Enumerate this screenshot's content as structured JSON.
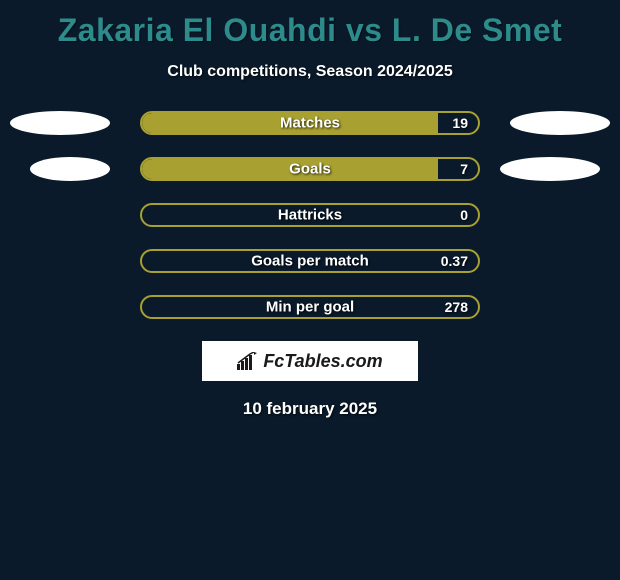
{
  "title": "Zakaria El Ouahdi vs L. De Smet",
  "subtitle": "Club competitions, Season 2024/2025",
  "date": "10 february 2025",
  "logo_text": "FcTables.com",
  "colors": {
    "background": "#0a1a2a",
    "title_color": "#2e8b8b",
    "bar_fill": "#a8a030",
    "bar_border": "#a8a030",
    "text": "#ffffff",
    "ellipse": "#ffffff",
    "logo_bg": "#ffffff"
  },
  "stats": [
    {
      "label": "Matches",
      "value": "19",
      "fill_percent": 88,
      "show_ellipses": true
    },
    {
      "label": "Goals",
      "value": "7",
      "fill_percent": 88,
      "show_ellipses": true,
      "ellipse_narrow": true
    },
    {
      "label": "Hattricks",
      "value": "0",
      "fill_percent": 0,
      "show_ellipses": false
    },
    {
      "label": "Goals per match",
      "value": "0.37",
      "fill_percent": 0,
      "show_ellipses": false
    },
    {
      "label": "Min per goal",
      "value": "278",
      "fill_percent": 0,
      "show_ellipses": false
    }
  ]
}
